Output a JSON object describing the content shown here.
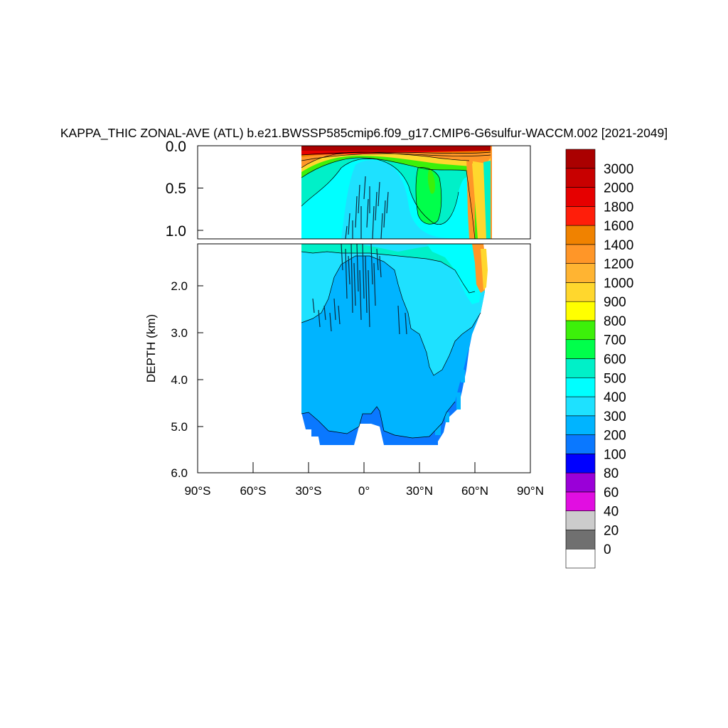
{
  "chart_data": {
    "type": "heatmap",
    "title": "KAPPA_THIC ZONAL-AVE (ATL) b.e21.BWSSP585cmip6.f09_g17.CMIP6-G6sulfur-WACCM.002 [2021-2049]",
    "ylabel": "DEPTH (km)",
    "xlabel": "",
    "x_ticks": [
      "90°S",
      "60°S",
      "30°S",
      "0°",
      "30°N",
      "60°N",
      "90°N"
    ],
    "x_tick_values": [
      -90,
      -60,
      -30,
      0,
      30,
      60,
      90
    ],
    "xlim": [
      -90,
      90
    ],
    "upper_panel": {
      "ylim": [
        0.0,
        1.1
      ],
      "y_ticks": [
        "0.0",
        "0.5",
        "1.0"
      ],
      "y_tick_values": [
        0.0,
        0.5,
        1.0
      ]
    },
    "lower_panel": {
      "ylim": [
        1.1,
        6.0
      ],
      "y_ticks": [
        "2.0",
        "3.0",
        "4.0",
        "5.0",
        "6.0"
      ],
      "y_tick_values": [
        2.0,
        3.0,
        4.0,
        5.0,
        6.0
      ]
    },
    "colorbar": {
      "levels": [
        "0",
        "20",
        "40",
        "60",
        "80",
        "100",
        "200",
        "300",
        "400",
        "500",
        "600",
        "700",
        "800",
        "900",
        "1000",
        "1200",
        "1400",
        "1600",
        "1800",
        "2000",
        "3000"
      ],
      "colors": [
        "#ffffff",
        "#707070",
        "#cccccc",
        "#e10ee1",
        "#9a00d8",
        "#0000ff",
        "#0a78ff",
        "#00b4ff",
        "#1ee1ff",
        "#00ffff",
        "#00f0c8",
        "#00ff4b",
        "#3cf00a",
        "#ffff00",
        "#ffd72d",
        "#ffb432",
        "#ff9628",
        "#f08200",
        "#ff1e0a",
        "#e60000",
        "#c80000",
        "#aa0000"
      ]
    },
    "regions": [
      {
        "value": 3000,
        "lat": [
          -34,
          69
        ],
        "depth": [
          0.0,
          0.07
        ]
      },
      {
        "value": 1600,
        "lat": [
          -34,
          69
        ],
        "depth": [
          0.07,
          0.2
        ]
      },
      {
        "value": 350,
        "lat": [
          -34,
          68
        ],
        "depth": [
          0.2,
          1.1
        ]
      },
      {
        "value": 650,
        "lat": [
          33,
          48
        ],
        "depth": [
          0.3,
          0.9
        ]
      },
      {
        "value": 1400,
        "lat": [
          55,
          68
        ],
        "depth": [
          0.2,
          2.3
        ]
      },
      {
        "value": 250,
        "lat": [
          -34,
          66
        ],
        "depth": [
          1.1,
          5.4
        ]
      },
      {
        "value": 350,
        "lat": [
          -34,
          66
        ],
        "depth": [
          1.1,
          3.7
        ]
      },
      {
        "value": 150,
        "lat": [
          -34,
          64
        ],
        "depth": [
          4.5,
          5.4
        ]
      }
    ]
  }
}
